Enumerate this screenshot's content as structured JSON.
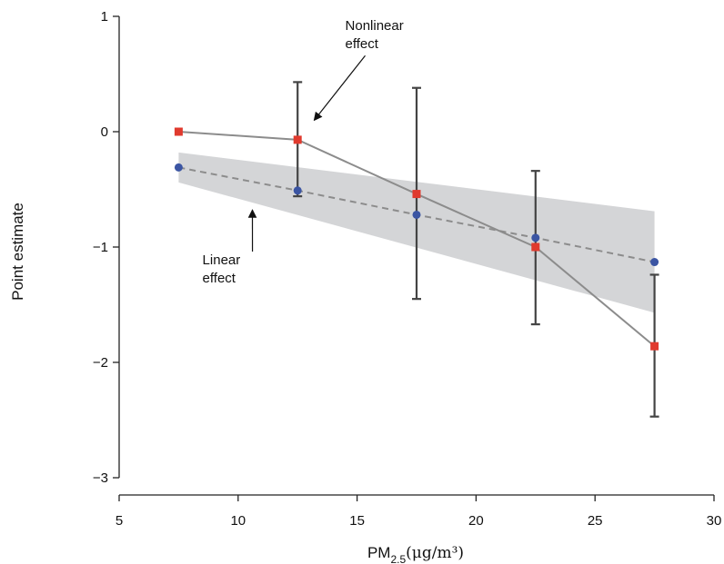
{
  "chart_data": {
    "type": "line",
    "xlabel": {
      "main": "PM",
      "sub": "2.5",
      "units": "(μg/m³)"
    },
    "ylabel": "Point estimate",
    "xlim": [
      5,
      30
    ],
    "ylim": [
      -3,
      1
    ],
    "x_ticks": [
      "5",
      "10",
      "15",
      "20",
      "25",
      "30"
    ],
    "y_ticks": [
      "1",
      "0",
      "−1",
      "−2",
      "−3"
    ],
    "x": [
      7.5,
      12.5,
      17.5,
      22.5,
      27.5
    ],
    "series": [
      {
        "style": "solid-line-square-markers",
        "color": "#e03a2e",
        "line_color": "#8c8c8c",
        "values": [
          0.0,
          -0.07,
          -0.54,
          -1.0,
          -1.86
        ],
        "error_low": [
          null,
          -0.56,
          -1.45,
          -1.67,
          -2.47
        ],
        "error_high": [
          null,
          0.43,
          0.38,
          -0.34,
          -1.24
        ]
      },
      {
        "style": "dashed-line-circle-markers",
        "color": "#3b55a3",
        "line_color": "#8c8c8c",
        "values": [
          -0.31,
          -0.51,
          -0.72,
          -0.92,
          -1.13
        ],
        "band_low": [
          -0.44,
          null,
          null,
          null,
          -1.57
        ],
        "band_high": [
          -0.18,
          null,
          null,
          null,
          -0.69
        ],
        "band_color": "#d4d5d7"
      }
    ],
    "annotations": [
      {
        "line1": "Nonlinear",
        "line2": "effect",
        "x": 14.5,
        "y": 0.88,
        "arrow_to": [
          13.2,
          0.1
        ]
      },
      {
        "line1": "Linear",
        "line2": "effect",
        "x": 8.5,
        "y": -1.15,
        "arrow_to": [
          10.6,
          -0.68
        ]
      }
    ],
    "grid": false,
    "legend": "none"
  }
}
